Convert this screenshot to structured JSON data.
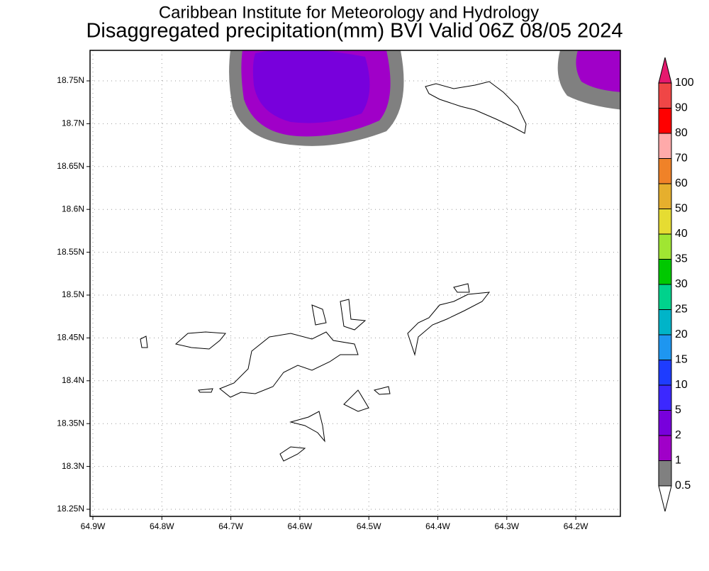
{
  "header": {
    "title": "Caribbean Institute for Meteorology and Hydrology",
    "subtitle": "Disaggregated precipitation(mm) BVI Valid 06Z 08/05 2024"
  },
  "map": {
    "y_ticks": [
      "18.75N",
      "18.7N",
      "18.65N",
      "18.6N",
      "18.55N",
      "18.5N",
      "18.45N",
      "18.4N",
      "18.35N",
      "18.3N",
      "18.25N"
    ],
    "x_ticks": [
      "64.9W",
      "64.8W",
      "64.7W",
      "64.6W",
      "64.5W",
      "64.4W",
      "64.3W",
      "64.2W"
    ]
  },
  "colorbar": {
    "labels": [
      "100",
      "90",
      "80",
      "70",
      "60",
      "50",
      "40",
      "35",
      "30",
      "25",
      "20",
      "15",
      "10",
      "5",
      "2",
      "1",
      "0.5"
    ],
    "colors": [
      "#e6196e",
      "#f04646",
      "#ff0000",
      "#ffaaaa",
      "#f08228",
      "#e6af2d",
      "#e6dc32",
      "#a0e632",
      "#00c800",
      "#00d28c",
      "#00b4c8",
      "#1e96f0",
      "#1e3cff",
      "#3c28ff",
      "#7800dc",
      "#a000c8",
      "#808080",
      "#ffffff"
    ]
  }
}
